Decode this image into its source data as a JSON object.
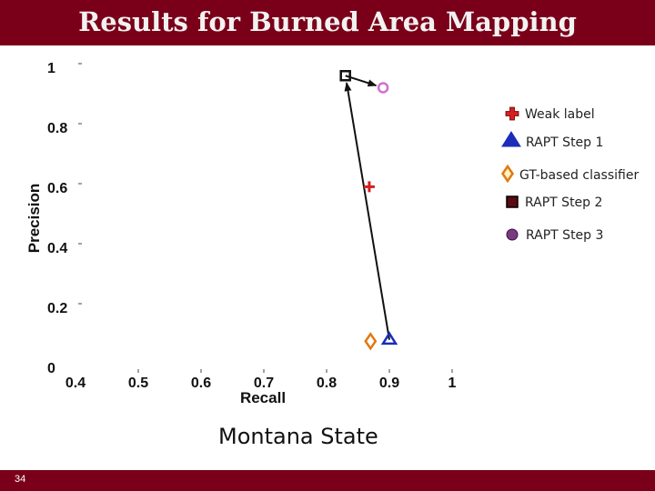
{
  "slide": {
    "title": "Results for Burned Area Mapping",
    "subtitle": "Montana State",
    "page_number": "34"
  },
  "chart_data": {
    "type": "scatter",
    "title": "",
    "xlabel": "Recall",
    "ylabel": "Precision",
    "xlim": [
      0.4,
      1
    ],
    "ylim": [
      0,
      1
    ],
    "xticks": [
      "0.4",
      "0.5",
      "0.6",
      "0.7",
      "0.8",
      "0.9",
      "1"
    ],
    "yticks": [
      "0",
      "0.2",
      "0.4",
      "0.6",
      "0.8",
      "1"
    ],
    "grid": false,
    "legend_position": "right",
    "series": [
      {
        "name": "Weak label",
        "marker": "plus",
        "color": "#d42020",
        "x": [
          0.868
        ],
        "y": [
          0.605
        ]
      },
      {
        "name": "RAPT Step 1",
        "marker": "triangle",
        "color": "#1a2cb8",
        "x": [
          0.9
        ],
        "y": [
          0.095
        ]
      },
      {
        "name": "GT-based classifier",
        "marker": "diamond",
        "color": "#e07a10",
        "x": [
          0.87
        ],
        "y": [
          0.09
        ]
      },
      {
        "name": "RAPT Step 2",
        "marker": "square",
        "color": "#111111",
        "x": [
          0.83
        ],
        "y": [
          0.975
        ]
      },
      {
        "name": "RAPT Step 3",
        "marker": "circle",
        "color": "#d070d0",
        "x": [
          0.89
        ],
        "y": [
          0.935
        ]
      }
    ],
    "path": {
      "color": "#111111",
      "points": [
        {
          "x": 0.9,
          "y": 0.095
        },
        {
          "x": 0.83,
          "y": 0.975
        },
        {
          "x": 0.89,
          "y": 0.935
        }
      ]
    }
  }
}
